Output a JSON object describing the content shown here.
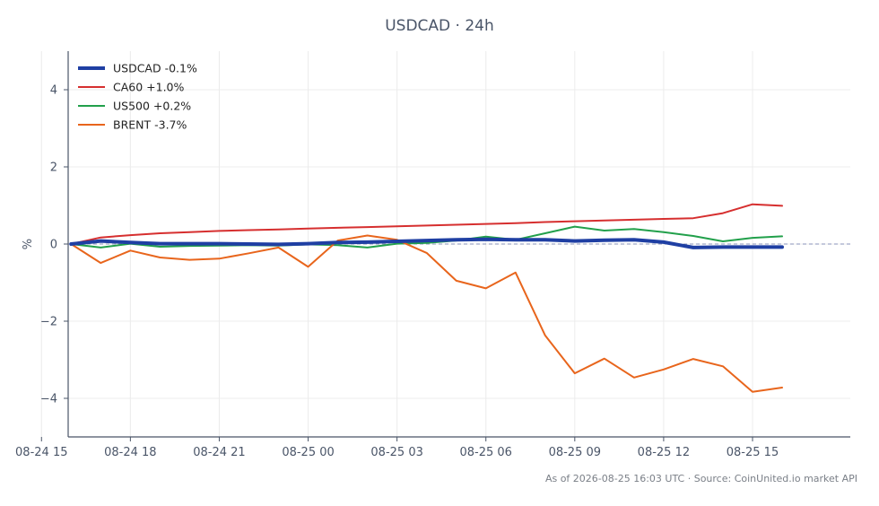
{
  "chart_data": {
    "type": "line",
    "title": "USDCAD · 24h",
    "ylabel": "%",
    "xlabel": "",
    "footer": "As of 2026-08-25 16:03 UTC · Source: CoinUnited.io market API",
    "ylim": [
      -5,
      5
    ],
    "yticks": [
      -4,
      -2,
      0,
      2,
      4
    ],
    "ytick_labels": [
      "−4",
      "−2",
      "0",
      "2",
      "4"
    ],
    "xlim": [
      15.9,
      42.3
    ],
    "xticks": [
      15,
      18,
      21,
      24,
      27,
      30,
      33,
      36,
      39
    ],
    "xtick_labels": [
      "08-24 15",
      "08-24 18",
      "08-24 21",
      "08-25 00",
      "08-25 03",
      "08-25 06",
      "08-25 09",
      "08-25 12",
      "08-25 15"
    ],
    "grid": true,
    "legend_position": "top-left",
    "zero_line": true,
    "x": [
      16,
      17,
      18,
      19,
      20,
      21,
      22,
      23,
      24,
      25,
      26,
      27,
      28,
      29,
      30,
      31,
      32,
      33,
      34,
      35,
      36,
      37,
      38,
      39,
      40
    ],
    "series": [
      {
        "name": "CA60 +1.0%",
        "color": "#d62f2f",
        "width": 2,
        "values": [
          0.0,
          0.17,
          0.23,
          0.28,
          0.31,
          0.34,
          0.36,
          0.38,
          0.4,
          0.42,
          0.44,
          0.46,
          0.48,
          0.5,
          0.52,
          0.54,
          0.57,
          0.59,
          0.61,
          0.63,
          0.65,
          0.67,
          0.8,
          1.03,
          0.99
        ]
      },
      {
        "name": "US500 +0.2%",
        "color": "#22a04b",
        "width": 2,
        "values": [
          0.0,
          -0.09,
          0.01,
          -0.07,
          -0.05,
          -0.04,
          -0.03,
          -0.04,
          -0.01,
          -0.03,
          -0.09,
          0.01,
          0.03,
          0.09,
          0.19,
          0.11,
          0.28,
          0.45,
          0.35,
          0.39,
          0.31,
          0.21,
          0.07,
          0.16,
          0.2
        ]
      },
      {
        "name": "BRENT -3.7%",
        "color": "#e8651c",
        "width": 2,
        "values": [
          0.0,
          -0.49,
          -0.17,
          -0.35,
          -0.41,
          -0.38,
          -0.24,
          -0.09,
          -0.59,
          0.09,
          0.22,
          0.11,
          -0.23,
          -0.95,
          -1.15,
          -0.74,
          -2.37,
          -3.35,
          -2.97,
          -3.46,
          -3.25,
          -2.98,
          -3.17,
          -3.83,
          -3.72
        ]
      },
      {
        "name": "USDCAD -0.1%",
        "color": "#1f3fa3",
        "width": 4,
        "values": [
          0.0,
          0.08,
          0.04,
          0.01,
          0.01,
          0.01,
          0.0,
          -0.01,
          0.01,
          0.04,
          0.05,
          0.07,
          0.09,
          0.11,
          0.12,
          0.11,
          0.11,
          0.08,
          0.1,
          0.11,
          0.05,
          -0.09,
          -0.08,
          -0.08,
          -0.08
        ]
      }
    ],
    "legend_order": [
      "USDCAD -0.1%",
      "CA60 +1.0%",
      "US500 +0.2%",
      "BRENT -3.7%"
    ]
  }
}
